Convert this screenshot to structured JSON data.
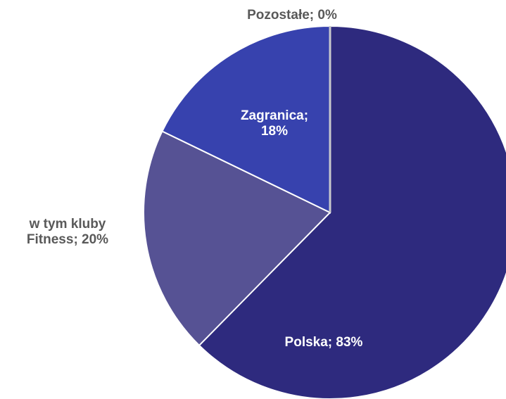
{
  "chart_data": {
    "type": "pie",
    "slices": [
      {
        "name": "Polska",
        "value": 83,
        "label": "Polska; 83%",
        "color": "#2e2a7e",
        "part": {
          "name": "w tym kluby Fitness",
          "value": 20,
          "label": "w tym kluby Fitness; 20%",
          "color": "#565294"
        }
      },
      {
        "name": "Zagranica",
        "value": 18,
        "label": "Zagranica; 18%",
        "color": "#3742ae"
      },
      {
        "name": "Pozostałe",
        "value": 0,
        "label": "Pozostałe; 0%",
        "color": "#c8c8cc"
      }
    ]
  }
}
